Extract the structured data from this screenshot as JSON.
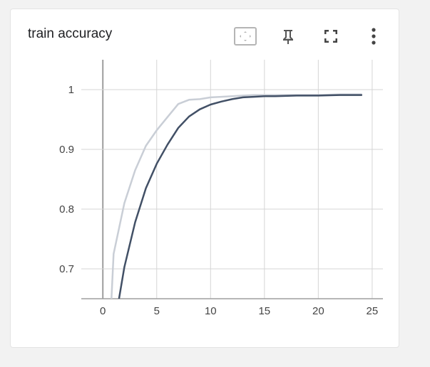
{
  "card": {
    "title": "train accuracy"
  },
  "toolbar": {
    "icons": [
      "fit-domain-icon",
      "pin-icon",
      "fullscreen-icon",
      "more-vert-icon"
    ]
  },
  "colors": {
    "main_series": "#425066",
    "smoothed_series": "#c9ced6",
    "grid": "#d5d5d5",
    "axis": "#9e9e9e"
  },
  "chart_data": {
    "type": "line",
    "title": "train accuracy",
    "xlabel": "",
    "ylabel": "",
    "xlim": [
      -2,
      26
    ],
    "ylim": [
      0.65,
      1.05
    ],
    "xticks": [
      0,
      5,
      10,
      15,
      20,
      25
    ],
    "xtick_labels": [
      "0",
      "5",
      "10",
      "15",
      "20",
      "25"
    ],
    "yticks": [
      0.7,
      0.8,
      0.9,
      1.0
    ],
    "ytick_labels": [
      "0.7",
      "0.8",
      "0.9",
      "1"
    ],
    "grid": true,
    "series": [
      {
        "name": "",
        "role": "raw-faded",
        "x": [
          0.8,
          1,
          2,
          3,
          4,
          5,
          6,
          7,
          8,
          9,
          10,
          11,
          12,
          13,
          14,
          15,
          16,
          18,
          20,
          22,
          24
        ],
        "y": [
          0.65,
          0.725,
          0.81,
          0.865,
          0.906,
          0.932,
          0.954,
          0.976,
          0.983,
          0.984,
          0.987,
          0.988,
          0.989,
          0.99,
          0.991,
          0.991,
          0.991,
          0.991,
          0.991,
          0.992,
          0.992
        ]
      },
      {
        "name": "",
        "role": "smoothed",
        "x": [
          1.5,
          2,
          3,
          4,
          5,
          6,
          7,
          8,
          9,
          10,
          11,
          12,
          13,
          14,
          15,
          16,
          18,
          20,
          22,
          24
        ],
        "y": [
          0.65,
          0.703,
          0.778,
          0.835,
          0.876,
          0.908,
          0.936,
          0.955,
          0.967,
          0.975,
          0.98,
          0.984,
          0.987,
          0.988,
          0.989,
          0.989,
          0.99,
          0.99,
          0.991,
          0.991
        ]
      }
    ]
  }
}
